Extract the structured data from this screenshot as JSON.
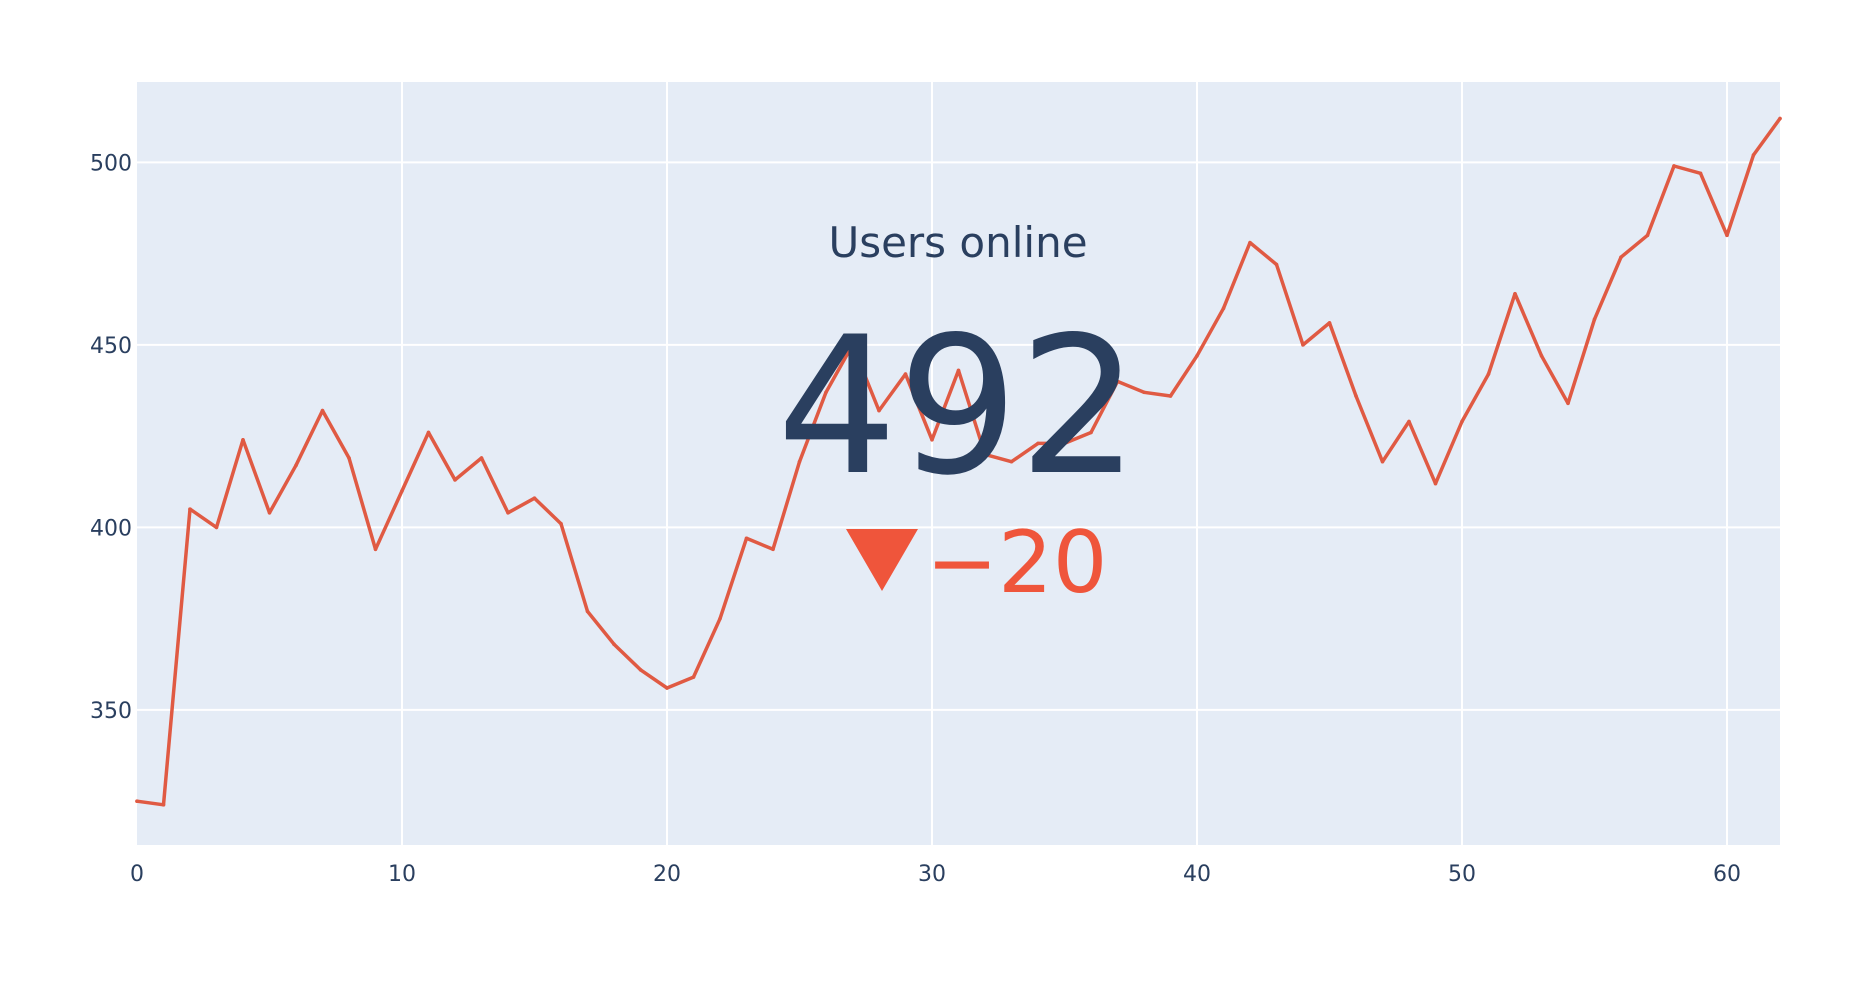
{
  "colors": {
    "plot_background": "#e5ecf6",
    "grid": "#ffffff",
    "line": "#e05a43",
    "text": "#2a3f5f",
    "delta_decreasing": "#ef553b"
  },
  "indicator": {
    "title": "Users online",
    "value": "492",
    "delta_text": "−20",
    "delta_icon": "triangle-down-icon"
  },
  "chart_data": {
    "type": "line",
    "title": "",
    "xlabel": "",
    "ylabel": "",
    "xlim": [
      0,
      62
    ],
    "ylim": [
      313,
      522
    ],
    "grid": true,
    "xticks": [
      0,
      10,
      20,
      30,
      40,
      50,
      60
    ],
    "yticks": [
      350,
      400,
      450,
      500
    ],
    "x": [
      0,
      1,
      2,
      3,
      4,
      5,
      6,
      7,
      8,
      9,
      10,
      11,
      12,
      13,
      14,
      15,
      16,
      17,
      18,
      19,
      20,
      21,
      22,
      23,
      24,
      25,
      26,
      27,
      28,
      29,
      30,
      31,
      32,
      33,
      34,
      35,
      36,
      37,
      38,
      39,
      40,
      41,
      42,
      43,
      44,
      45,
      46,
      47,
      48,
      49,
      50,
      51,
      52,
      53,
      54,
      55,
      56,
      57,
      58,
      59,
      60,
      61,
      62
    ],
    "series": [
      {
        "values": [
          325,
          324,
          405,
          400,
          424,
          404,
          417,
          432,
          419,
          394,
          410,
          426,
          413,
          419,
          404,
          408,
          401,
          377,
          368,
          361,
          356,
          359,
          375,
          397,
          394,
          418,
          437,
          450,
          432,
          442,
          424,
          443,
          420,
          418,
          423,
          423,
          426,
          440,
          437,
          436,
          447,
          460,
          478,
          472,
          450,
          456,
          436,
          418,
          429,
          412,
          429,
          442,
          464,
          447,
          434,
          457,
          474,
          480,
          499,
          497,
          480,
          502,
          512
        ]
      }
    ]
  }
}
